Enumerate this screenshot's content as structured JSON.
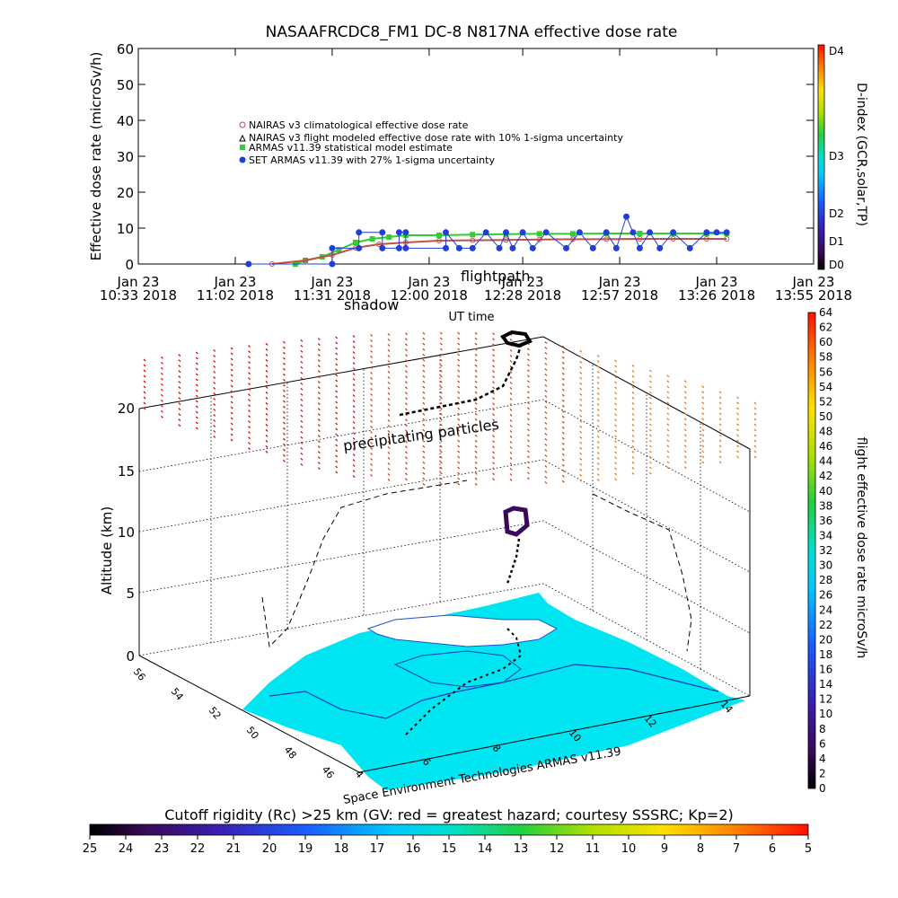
{
  "chart_data": [
    {
      "type": "line",
      "title": "NASAAFRCDC8_FM1 DC-8    N817NA effective dose rate",
      "ylabel": "Effective dose rate (microSv/h)",
      "xlabel": "UT time",
      "ylim": [
        0,
        60
      ],
      "yticks": [
        "0",
        "10",
        "20",
        "30",
        "40",
        "50",
        "60"
      ],
      "xticks": [
        {
          "d": "Jan 23",
          "t": "10:33 2018"
        },
        {
          "d": "Jan 23",
          "t": "11:02 2018"
        },
        {
          "d": "Jan 23",
          "t": "11:31 2018"
        },
        {
          "d": "Jan 23",
          "t": "12:00 2018"
        },
        {
          "d": "Jan 23",
          "t": "12:28 2018"
        },
        {
          "d": "Jan 23",
          "t": "12:57 2018"
        },
        {
          "d": "Jan 23",
          "t": "13:26 2018"
        },
        {
          "d": "Jan 23",
          "t": "13:55 2018"
        }
      ],
      "x_minutes_from_1033": [
        0,
        29,
        58,
        87,
        115,
        144,
        173,
        202
      ],
      "legend_position": "upper-left",
      "legend": [
        {
          "label": "NAIRAS v3 climatological effective dose rate",
          "color": "#c0504d",
          "marker": "circle"
        },
        {
          "label": "NAIRAS v3 flight modeled effective dose rate with 10% 1-sigma uncertainty",
          "color": "#000000",
          "marker": "triangle"
        },
        {
          "label": "ARMAS v11.39 statistical model estimate",
          "color": "#33cc33",
          "marker": "square"
        },
        {
          "label": "SET ARMAS v11.39 with 27% 1-sigma uncertainty",
          "color": "#1f3fd8",
          "marker": "circle"
        }
      ],
      "series": [
        {
          "name": "ARMAS v11.39 statistical model estimate",
          "color": "#33cc33",
          "x": [
            47,
            50,
            55,
            60,
            65,
            70,
            75,
            80,
            90,
            100,
            110,
            120,
            130,
            140,
            150,
            160,
            170,
            176
          ],
          "values": [
            0,
            1,
            2,
            4,
            6,
            7,
            7.5,
            8,
            8,
            8.2,
            8.3,
            8.4,
            8.4,
            8.5,
            8.5,
            8.5,
            8.5,
            8.5
          ]
        },
        {
          "name": "NAIRAS v3 climatological effective dose rate",
          "color": "#c0504d",
          "x": [
            40,
            50,
            58,
            65,
            72,
            80,
            90,
            100,
            110,
            120,
            130,
            140,
            150,
            160,
            170,
            176
          ],
          "values": [
            0,
            1,
            2.5,
            4.5,
            5.5,
            6,
            6.5,
            6.6,
            6.7,
            6.8,
            6.9,
            6.9,
            7,
            7,
            7,
            7
          ]
        },
        {
          "name": "SET ARMAS v11.39 with 27% 1-sigma uncertainty",
          "color": "#1f3fd8",
          "x": [
            33,
            58,
            58,
            66,
            66,
            73,
            73,
            78,
            78,
            80,
            80,
            92,
            92,
            96,
            100,
            104,
            108,
            110,
            112,
            115,
            118,
            122,
            128,
            132,
            136,
            140,
            143,
            146,
            148,
            150,
            153,
            156,
            160,
            165,
            170,
            173,
            176
          ],
          "values": [
            0,
            0,
            4.4,
            4.4,
            8.8,
            8.8,
            4.4,
            4.4,
            8.8,
            8.8,
            4.4,
            4.4,
            8.8,
            4.4,
            4.4,
            8.8,
            4.4,
            8.8,
            4.4,
            8.8,
            4.4,
            8.8,
            4.4,
            8.8,
            4.4,
            8.8,
            4.4,
            13.2,
            8.8,
            4.4,
            8.8,
            4.4,
            8.8,
            4.4,
            8.8,
            8.8,
            8.8
          ]
        }
      ],
      "right_axis": {
        "label": "D-index (GCR,solar,TP)",
        "ticks": [
          "D0",
          "D1",
          "D2",
          "D3",
          "D4"
        ]
      }
    },
    {
      "type": "scatter",
      "title": "",
      "zlabel": "Altitude (km)",
      "zticks": [
        "0",
        "5",
        "10",
        "15",
        "20"
      ],
      "xticks": [
        "4",
        "6",
        "8",
        "10",
        "12",
        "14"
      ],
      "yticks": [
        "46",
        "48",
        "50",
        "52",
        "54",
        "56"
      ],
      "annotations": [
        "shadow",
        "flightpath",
        "precipitating particles"
      ],
      "credit": "Space Environment Technologies ARMAS v11.39",
      "colorbar": {
        "label": "flight effective dose rate microSv/h",
        "min": 0,
        "max": 64,
        "ticks": [
          "0",
          "2",
          "4",
          "6",
          "8",
          "10",
          "12",
          "14",
          "16",
          "18",
          "20",
          "22",
          "24",
          "26",
          "28",
          "30",
          "32",
          "34",
          "36",
          "38",
          "40",
          "42",
          "44",
          "46",
          "48",
          "50",
          "52",
          "54",
          "56",
          "58",
          "60",
          "62",
          "64"
        ]
      }
    },
    {
      "type": "heatmap",
      "title": "Cutoff rigidity (Rc) >25 km (GV: red = greatest hazard; courtesy SSSRC; Kp=2)",
      "colorbar": {
        "ticks": [
          "25",
          "24",
          "23",
          "22",
          "21",
          "20",
          "19",
          "18",
          "17",
          "16",
          "15",
          "14",
          "13",
          "12",
          "11",
          "10",
          "9",
          "8",
          "7",
          "6",
          "5"
        ]
      }
    }
  ]
}
